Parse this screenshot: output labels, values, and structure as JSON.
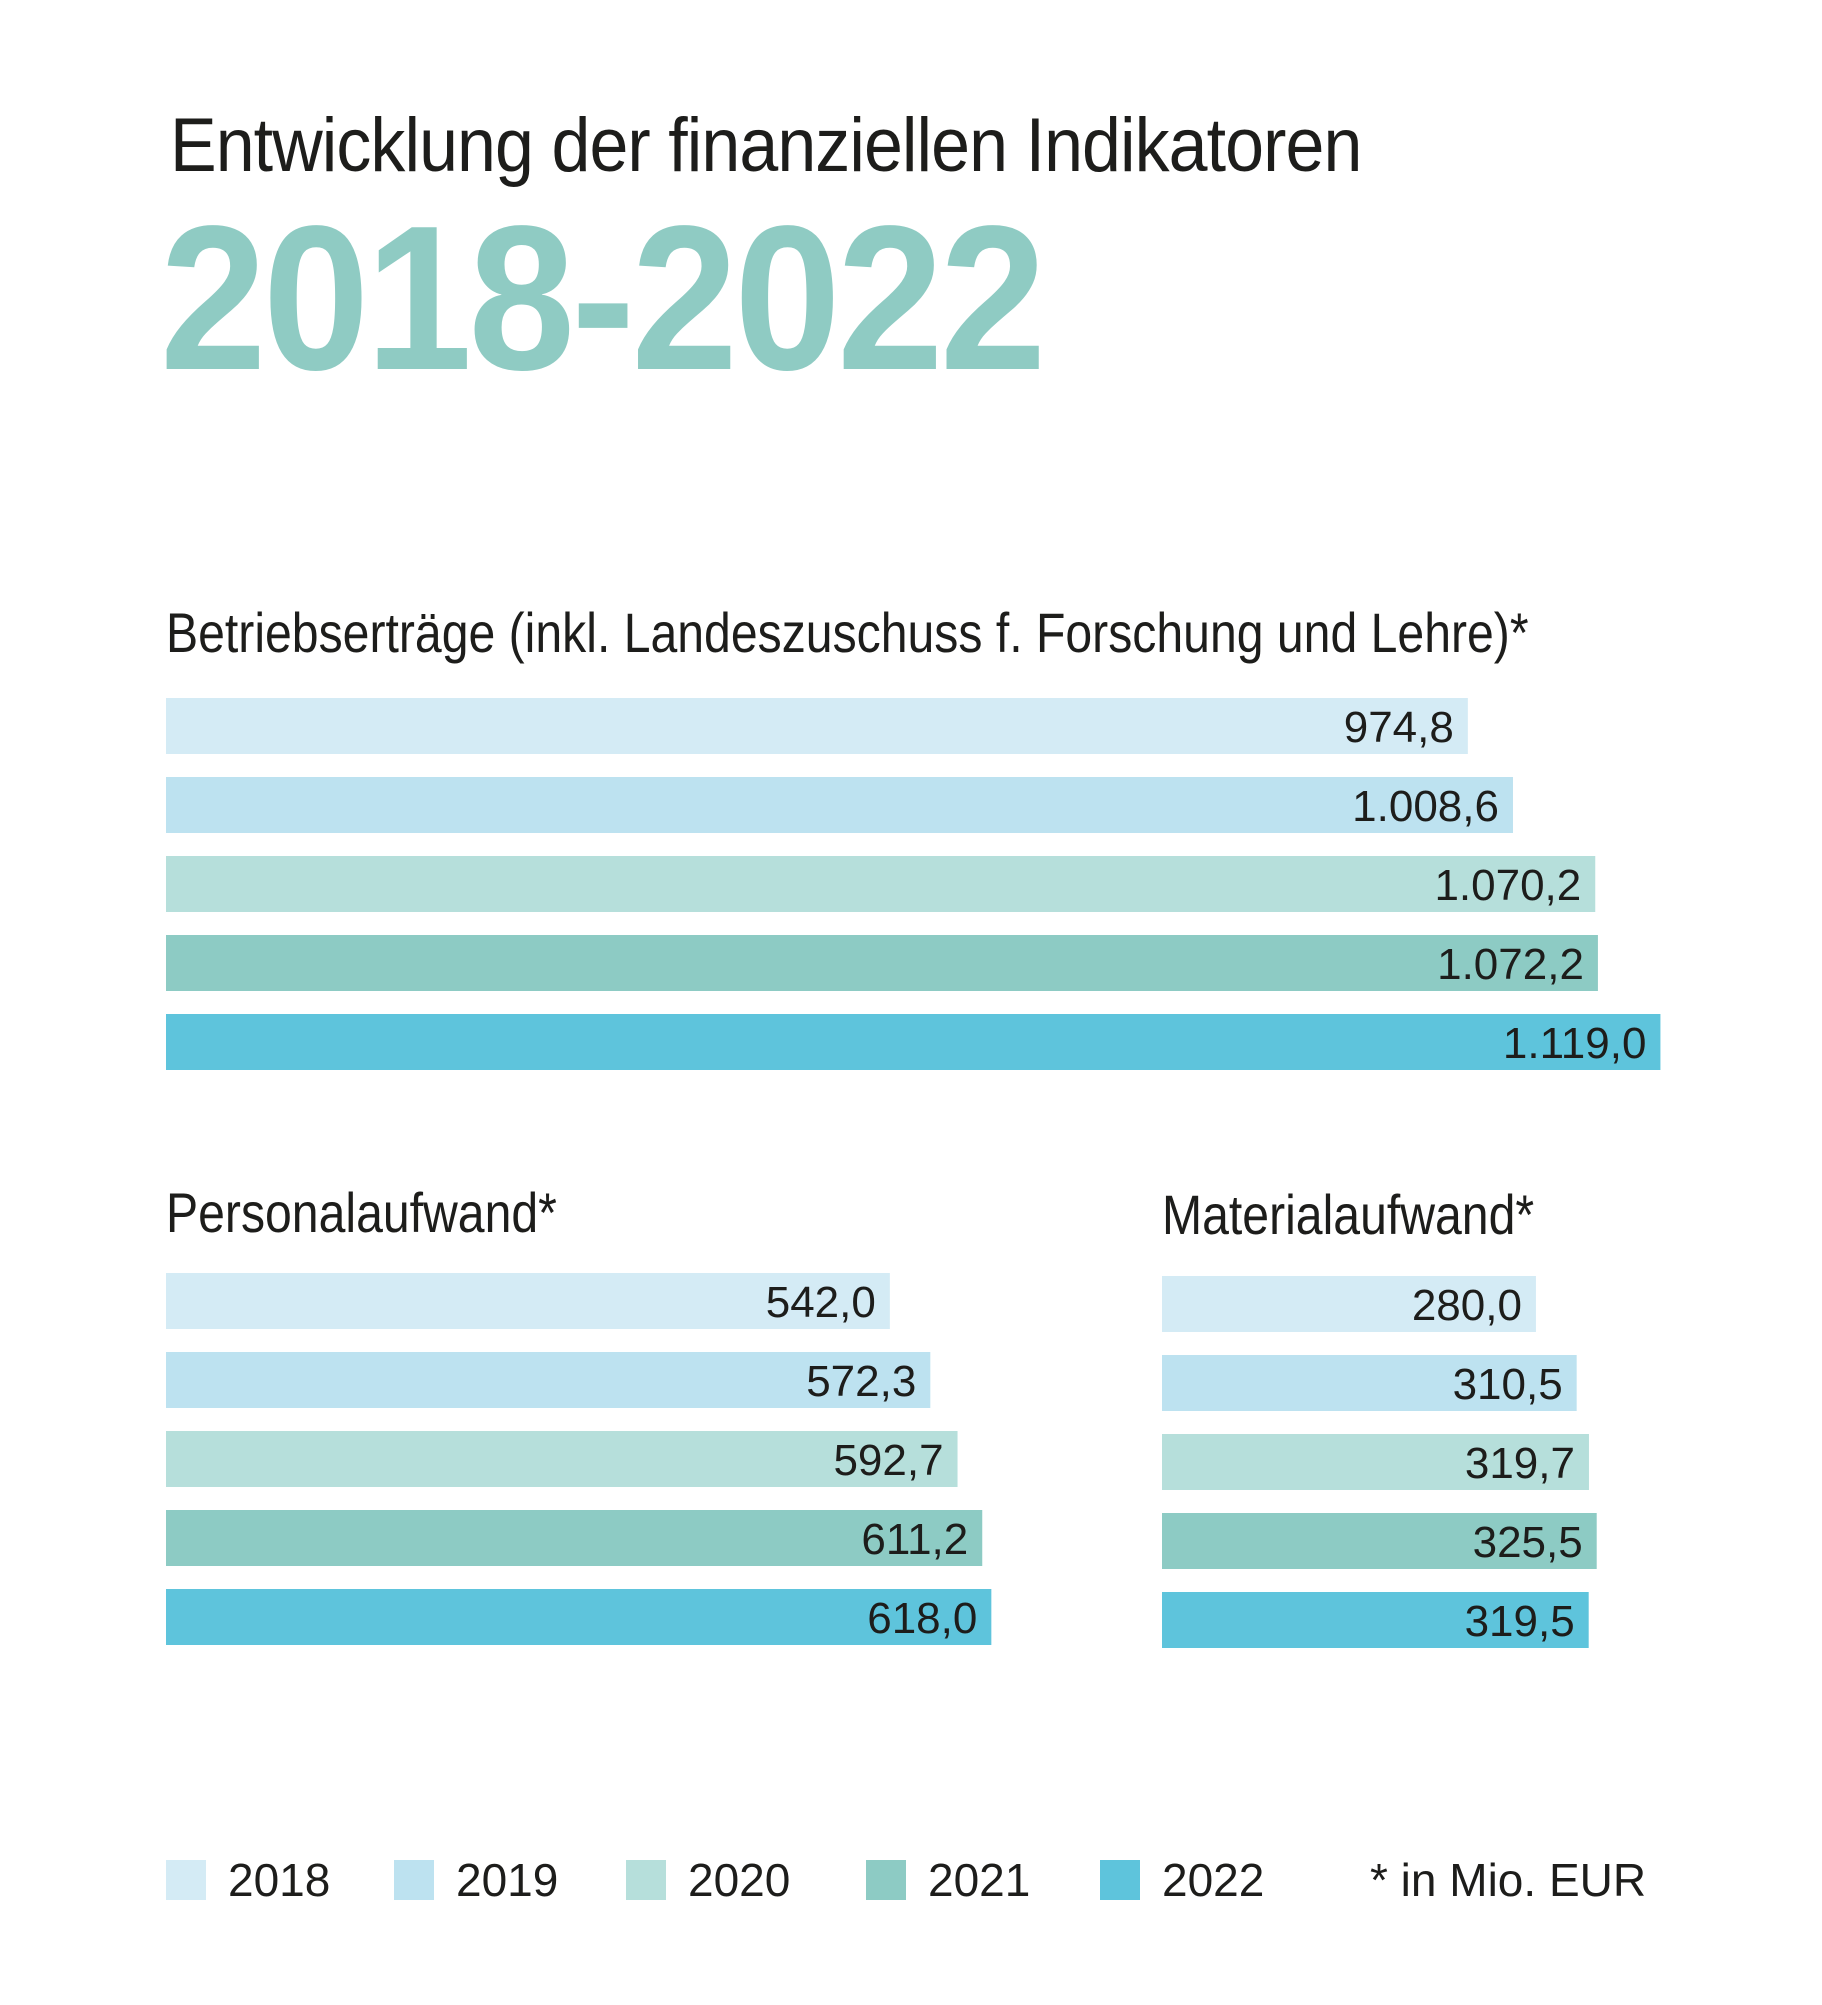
{
  "header": {
    "title": "Entwicklung der finanziellen Indikatoren",
    "years": "2018-2022"
  },
  "colors": {
    "2018": "#d4ebf5",
    "2019": "#bde2f0",
    "2020": "#b6dfdb",
    "2021": "#8dcbc4",
    "2022": "#5ec4dc",
    "accent": "#8fcbc3"
  },
  "legend": {
    "items": [
      {
        "label": "2018",
        "color": "#d4ebf5"
      },
      {
        "label": "2019",
        "color": "#bde2f0"
      },
      {
        "label": "2020",
        "color": "#b6dfdb"
      },
      {
        "label": "2021",
        "color": "#8dcbc4"
      },
      {
        "label": "2022",
        "color": "#5ec4dc"
      }
    ],
    "footnote": "* in Mio. EUR"
  },
  "chart_data": [
    {
      "type": "bar",
      "orientation": "horizontal",
      "title": "Betriebserträge (inkl. Landeszuschuss f. Forschung und Lehre)*",
      "categories": [
        "2018",
        "2019",
        "2020",
        "2021",
        "2022"
      ],
      "values": [
        974.8,
        1008.6,
        1070.2,
        1072.2,
        1119.0
      ],
      "value_labels": [
        "974,8",
        "1.008,6",
        "1.070,2",
        "1.072,2",
        "1.119,0"
      ],
      "grid": false
    },
    {
      "type": "bar",
      "orientation": "horizontal",
      "title": "Personalaufwand*",
      "categories": [
        "2018",
        "2019",
        "2020",
        "2021",
        "2022"
      ],
      "values": [
        542.0,
        572.3,
        592.7,
        611.2,
        618.0
      ],
      "value_labels": [
        "542,0",
        "572,3",
        "592,7",
        "611,2",
        "618,0"
      ],
      "grid": false
    },
    {
      "type": "bar",
      "orientation": "horizontal",
      "title": "Materialaufwand*",
      "categories": [
        "2018",
        "2019",
        "2020",
        "2021",
        "2022"
      ],
      "values": [
        280.0,
        310.5,
        319.7,
        325.5,
        319.5
      ],
      "value_labels": [
        "280,0",
        "310,5",
        "319,7",
        "325,5",
        "319,5"
      ],
      "grid": false
    }
  ]
}
